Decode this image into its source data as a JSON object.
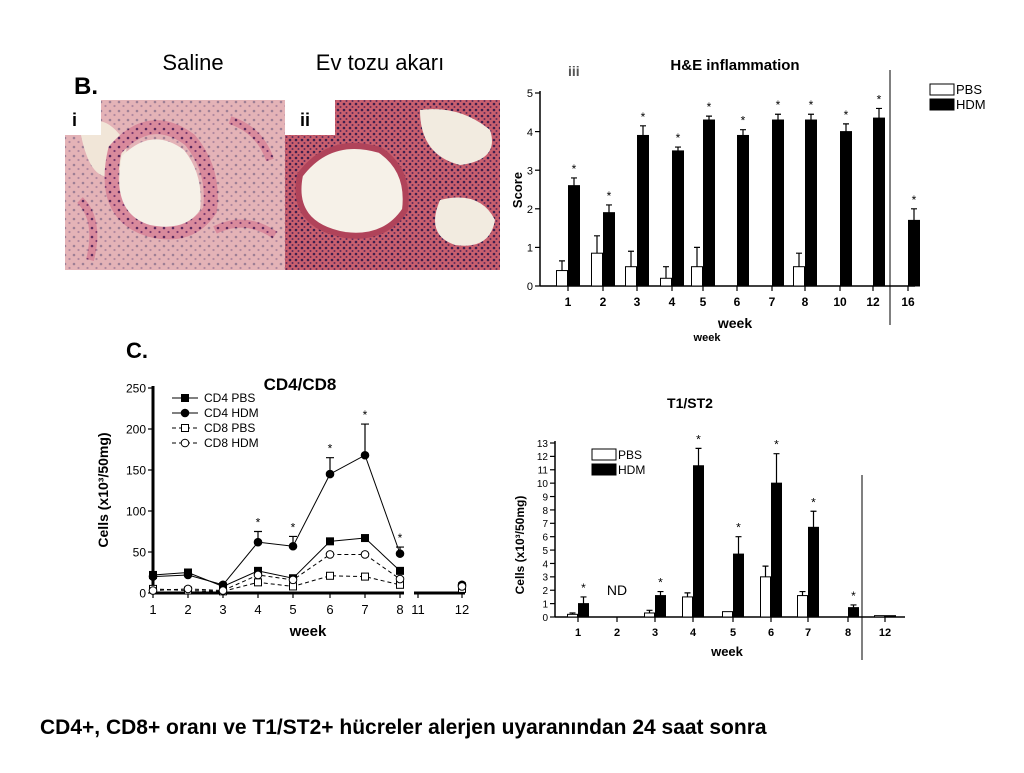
{
  "header": {
    "saline": "Saline",
    "hdm": "Ev tozu akarı",
    "panel_b": "B.",
    "panel_c": "C.",
    "image_i": "i",
    "image_ii": "ii"
  },
  "caption": "CD4+, CD8+ oranı ve T1/ST2+ hücreler alerjen uyaranından 24 saat sonra",
  "chart_data": [
    {
      "type": "bar",
      "panel": "iii",
      "title": "H&E inflammation",
      "ylabel": "Score",
      "xlabel": "week",
      "xlabel_2": "week",
      "categories": [
        "1",
        "2",
        "3",
        "4",
        "5",
        "6",
        "7",
        "8",
        "10",
        "12",
        "16"
      ],
      "ylim": [
        0,
        5
      ],
      "yticks": [
        0,
        1,
        2,
        3,
        4,
        5
      ],
      "legend": "top-right",
      "series": [
        {
          "name": "PBS",
          "color": "#ffffff",
          "values": [
            0.4,
            0.85,
            0.5,
            0.2,
            0.5,
            0,
            0,
            0.5,
            0,
            0,
            0
          ],
          "errors": [
            0.25,
            0.45,
            0.4,
            0.3,
            0.5,
            0,
            0,
            0.35,
            0,
            0,
            0
          ]
        },
        {
          "name": "HDM",
          "color": "#000000",
          "values": [
            2.6,
            1.9,
            3.9,
            3.5,
            4.3,
            3.9,
            4.3,
            4.3,
            4.0,
            4.35,
            1.7
          ],
          "errors": [
            0.2,
            0.2,
            0.25,
            0.1,
            0.1,
            0.15,
            0.15,
            0.15,
            0.2,
            0.25,
            0.3
          ],
          "significance": [
            "*",
            "*",
            "*",
            "*",
            "*",
            "*",
            "*",
            "*",
            "*",
            "*",
            "*"
          ]
        }
      ]
    },
    {
      "type": "line",
      "title": "CD4/CD8",
      "ylabel": "Cells (x10³/50mg)",
      "xlabel": "week",
      "categories": [
        "1",
        "2",
        "3",
        "4",
        "5",
        "6",
        "7",
        "8",
        "11",
        "12"
      ],
      "ylim": [
        0,
        250
      ],
      "yticks": [
        0,
        50,
        100,
        150,
        200,
        250
      ],
      "legend": "top-left",
      "series": [
        {
          "name": "CD4 PBS",
          "color": "#000000",
          "marker": "square",
          "marker_fill": "#000000",
          "dashed": false,
          "values": [
            22,
            25,
            8,
            27,
            18,
            63,
            67,
            27,
            null,
            8
          ]
        },
        {
          "name": "CD4 HDM",
          "color": "#000000",
          "marker": "circle",
          "marker_fill": "#000000",
          "dashed": false,
          "values": [
            20,
            22,
            10,
            62,
            57,
            145,
            168,
            48,
            null,
            10
          ],
          "errors": [
            5,
            3,
            2,
            13,
            12,
            20,
            38,
            8,
            null,
            2
          ],
          "significance": [
            null,
            null,
            null,
            "*",
            "*",
            "*",
            "*",
            "*",
            null,
            null
          ]
        },
        {
          "name": "CD8 PBS",
          "color": "#000000",
          "marker": "square",
          "marker_fill": "#ffffff",
          "dashed": true,
          "values": [
            5,
            3,
            2,
            13,
            8,
            21,
            20,
            10,
            null,
            5
          ]
        },
        {
          "name": "CD8 HDM",
          "color": "#000000",
          "marker": "circle",
          "marker_fill": "#ffffff",
          "dashed": true,
          "values": [
            3,
            5,
            3,
            22,
            16,
            47,
            47,
            17,
            null,
            8
          ]
        }
      ]
    },
    {
      "type": "bar",
      "title": "T1/ST2",
      "ylabel": "Cells (x10³/50mg)",
      "xlabel": "week",
      "categories": [
        "1",
        "2",
        "3",
        "4",
        "5",
        "6",
        "7",
        "8",
        "12"
      ],
      "ylim": [
        0,
        13
      ],
      "yticks": [
        0,
        1,
        2,
        3,
        4,
        5,
        6,
        7,
        8,
        9,
        10,
        11,
        12,
        13
      ],
      "legend": "top-left",
      "annotations": [
        {
          "text": "ND",
          "category": 1
        }
      ],
      "series": [
        {
          "name": "PBS",
          "color": "#ffffff",
          "values": [
            0.2,
            null,
            0.3,
            1.5,
            0.4,
            3.0,
            1.6,
            0,
            0.1
          ],
          "errors": [
            0.1,
            null,
            0.2,
            0.3,
            0,
            0.8,
            0.3,
            0,
            0
          ]
        },
        {
          "name": "HDM",
          "color": "#000000",
          "values": [
            1.0,
            null,
            1.6,
            11.3,
            4.7,
            10.0,
            6.7,
            0.7,
            0.1
          ],
          "errors": [
            0.5,
            null,
            0.3,
            1.3,
            1.3,
            2.2,
            1.2,
            0.2,
            0
          ],
          "significance": [
            "*",
            null,
            "*",
            "*",
            "*",
            "*",
            "*",
            "*",
            null
          ]
        }
      ]
    }
  ]
}
